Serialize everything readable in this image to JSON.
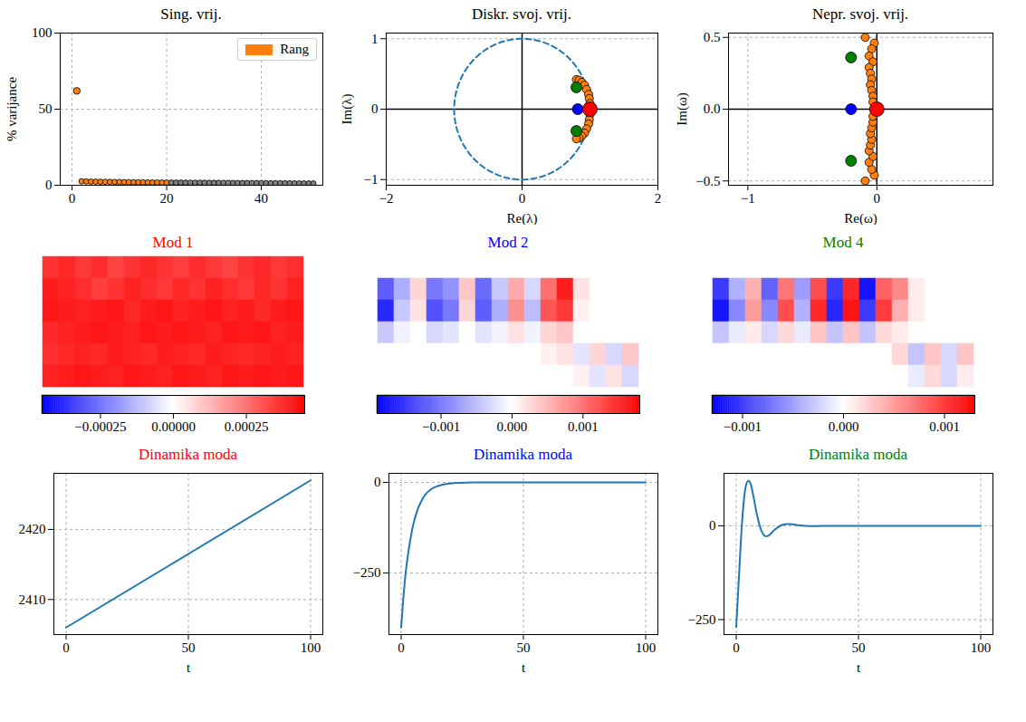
{
  "chart_data": [
    {
      "type": "scatter",
      "title": "Sing. vrij.",
      "y_label": "% varijance",
      "xlim": [
        -2.5,
        53
      ],
      "ylim": [
        0,
        100
      ],
      "xticks": [
        0,
        20,
        40
      ],
      "yticks": [
        0,
        50,
        100
      ],
      "grid": true,
      "legend": "upper right",
      "marker": "circle",
      "series": [
        {
          "name": "Rang",
          "color": "#ff7f0e",
          "x": [
            1,
            2,
            3,
            4,
            5,
            6,
            7,
            8,
            9,
            10,
            11,
            12,
            13,
            14,
            15,
            16,
            17,
            18,
            19,
            20
          ],
          "values": [
            62,
            2.6,
            2.5,
            2.4,
            2.35,
            2.3,
            2.25,
            2.2,
            2.15,
            2.1,
            2.05,
            2.0,
            1.98,
            1.95,
            1.92,
            1.9,
            1.87,
            1.85,
            1.82,
            1.8
          ]
        },
        {
          "color": "#808080",
          "x": [
            21,
            22,
            23,
            24,
            25,
            26,
            27,
            28,
            29,
            30,
            31,
            32,
            33,
            34,
            35,
            36,
            37,
            38,
            39,
            40,
            41,
            42,
            43,
            44,
            45,
            46,
            47,
            48,
            49,
            50,
            51
          ],
          "values": [
            1.78,
            1.76,
            1.74,
            1.72,
            1.7,
            1.68,
            1.66,
            1.64,
            1.62,
            1.6,
            1.58,
            1.56,
            1.54,
            1.52,
            1.5,
            1.48,
            1.46,
            1.44,
            1.42,
            1.4,
            1.38,
            1.36,
            1.34,
            1.32,
            1.3,
            1.28,
            1.26,
            1.24,
            1.22,
            1.2,
            1.18
          ]
        }
      ]
    },
    {
      "type": "scatter",
      "title": "Diskr. svoj. vrij.",
      "x_label": "Re(λ)",
      "y_label": "Im(λ)",
      "xlim": [
        -2,
        2
      ],
      "ylim": [
        -1.08,
        1.08
      ],
      "xticks": [
        {
          "value": -2,
          "label": "−2"
        },
        0,
        2
      ],
      "yticks": [
        {
          "value": -1,
          "label": "−1"
        },
        0,
        1
      ],
      "grid": true,
      "marker": "circle",
      "axhline": 0,
      "axvline": 0,
      "circle": {
        "radius": 1,
        "color": "#1f77b4",
        "line_style": "dashed"
      },
      "series": [
        {
          "color": "#ff7f0e",
          "x": [
            0.8,
            0.84,
            0.88,
            0.92,
            0.95,
            0.98,
            0.99,
            1.0,
            1.0,
            0.99,
            0.98,
            0.95,
            0.92,
            0.88,
            0.84,
            0.8
          ],
          "values": [
            0.42,
            0.41,
            0.38,
            0.34,
            0.28,
            0.21,
            0.15,
            0.08,
            -0.08,
            -0.15,
            -0.21,
            -0.28,
            -0.34,
            -0.38,
            -0.41,
            -0.42
          ]
        },
        {
          "color": "#008000",
          "x": [
            0.8,
            0.8
          ],
          "values": [
            0.31,
            -0.31
          ]
        },
        {
          "color": "#0000ff",
          "x": [
            0.82
          ],
          "values": [
            0
          ]
        },
        {
          "color": "#ff0000",
          "x": [
            1.0
          ],
          "values": [
            0
          ]
        }
      ]
    },
    {
      "type": "scatter",
      "title": "Nepr. svoj. vrij.",
      "x_label": "Re(ω)",
      "y_label": "Im(ω)",
      "xlim": [
        -1.15,
        0.9
      ],
      "ylim": [
        -0.53,
        0.53
      ],
      "xticks": [
        {
          "value": -1,
          "label": "−1"
        },
        0
      ],
      "yticks": [
        {
          "value": -0.5,
          "label": "−0.5"
        },
        {
          "value": 0,
          "label": "0.0"
        },
        0.5
      ],
      "grid": true,
      "marker": "circle",
      "axhline": 0,
      "axvline": 0,
      "series": [
        {
          "color": "#ff7f0e",
          "x": [
            -0.09,
            -0.02,
            -0.04,
            -0.06,
            -0.03,
            -0.06,
            -0.05,
            -0.04,
            -0.05,
            -0.04,
            -0.03,
            -0.03,
            -0.09,
            -0.02,
            -0.04,
            -0.06,
            -0.03,
            -0.06,
            -0.05,
            -0.04,
            -0.05,
            -0.04,
            -0.03,
            -0.03
          ],
          "values": [
            0.5,
            0.46,
            0.42,
            0.37,
            0.33,
            0.29,
            0.25,
            0.21,
            0.17,
            0.13,
            0.09,
            0.05,
            -0.5,
            -0.46,
            -0.42,
            -0.37,
            -0.33,
            -0.29,
            -0.25,
            -0.21,
            -0.17,
            -0.13,
            -0.09,
            -0.05
          ]
        },
        {
          "color": "#008000",
          "x": [
            -0.2,
            -0.2
          ],
          "values": [
            0.36,
            -0.36
          ]
        },
        {
          "color": "#0000ff",
          "x": [
            -0.2
          ],
          "values": [
            0
          ]
        },
        {
          "color": "#ff0000",
          "x": [
            0
          ],
          "values": [
            0
          ]
        }
      ]
    },
    {
      "type": "heatmap",
      "title": "Mod 1",
      "color": "#ff0000",
      "colors": [
        "#0000ff",
        "#ffffff",
        "#ff0000"
      ],
      "colorbar_range": [
        -0.00045,
        0.00045
      ],
      "colorbar_ticks": [
        {
          "value": -0.00025,
          "label": "−0.00025"
        },
        {
          "value": 0,
          "label": "0.00000"
        },
        {
          "value": 0.00025,
          "label": "0.00025"
        }
      ],
      "cells": [
        [
          0.00036,
          0.00038,
          0.00035,
          0.00037,
          0.00033,
          0.00036,
          0.00038,
          0.00036,
          0.00034,
          0.00037,
          0.00035,
          0.00033,
          0.00036,
          0.00038,
          0.00035,
          0.00037
        ],
        [
          0.0004,
          0.00039,
          0.00037,
          0.00034,
          0.00036,
          0.00039,
          0.00037,
          0.00035,
          0.00038,
          0.00036,
          0.00039,
          0.00037,
          0.00035,
          0.00038,
          0.00036,
          0.00039
        ],
        [
          0.00041,
          0.0004,
          0.00039,
          0.0004,
          0.00041,
          0.00038,
          0.0004,
          0.00041,
          0.00039,
          0.0004,
          0.00041,
          0.00039,
          0.0004,
          0.00038,
          0.0004,
          0.00041
        ],
        [
          0.00038,
          0.00039,
          0.0004,
          0.00041,
          0.0004,
          0.00039,
          0.00041,
          0.0004,
          0.00041,
          0.0004,
          0.00039,
          0.00041,
          0.0004,
          0.00041,
          0.00039,
          0.0004
        ],
        [
          0.00037,
          0.00038,
          0.00039,
          0.00038,
          0.0004,
          0.00039,
          0.00038,
          0.0004,
          0.00039,
          0.00038,
          0.0004,
          0.00039,
          0.00038,
          0.00039,
          0.0004,
          0.00039
        ],
        [
          0.00039,
          0.0004,
          0.00041,
          0.0004,
          0.00039,
          0.00041,
          0.0004,
          0.00039,
          0.00041,
          0.0004,
          0.00039,
          0.00041,
          0.0004,
          0.00041,
          0.0004,
          0.00041
        ]
      ]
    },
    {
      "type": "heatmap",
      "title": "Mod 2",
      "color": "#0000ff",
      "colors": [
        "#0000ff",
        "#ffffff",
        "#ff0000"
      ],
      "colorbar_range": [
        -0.0019,
        0.0018
      ],
      "colorbar_ticks": [
        {
          "value": -0.001,
          "label": "−0.001"
        },
        {
          "value": 0,
          "label": "0.000"
        },
        0.001
      ],
      "cells": [
        [
          0,
          0,
          0,
          0,
          0,
          0,
          0,
          0,
          0,
          0,
          0,
          0,
          0,
          0,
          0,
          0
        ],
        [
          -0.0012,
          -0.0006,
          0.0003,
          -0.001,
          -0.0008,
          0.0004,
          -0.0011,
          -0.0004,
          0.0006,
          -0.0003,
          0.001,
          0.0016,
          0.0002,
          0,
          0,
          0
        ],
        [
          -0.0016,
          -0.0004,
          0.0002,
          -0.0013,
          -0.001,
          0.0003,
          -0.0012,
          -0.0006,
          0.0008,
          -0.0005,
          0.0012,
          0.0014,
          0.0001,
          0,
          0,
          0
        ],
        [
          -0.0004,
          -0.0001,
          0,
          -0.0003,
          -0.0002,
          0,
          -0.0002,
          -0.0001,
          0.0002,
          -0.0001,
          0.0003,
          0.0004,
          0,
          0,
          0,
          0
        ],
        [
          0,
          0,
          0,
          0,
          0,
          0,
          0,
          0,
          0,
          0,
          0.0001,
          0.0002,
          -0.0002,
          0.0003,
          -0.0003,
          0.0004
        ],
        [
          0,
          0,
          0,
          0,
          0,
          0,
          0,
          0,
          0,
          0,
          0,
          0,
          0.0001,
          -0.0002,
          0.0002,
          -0.0003
        ]
      ]
    },
    {
      "type": "heatmap",
      "title": "Mod 4",
      "color": "#008000",
      "colors": [
        "#0000ff",
        "#ffffff",
        "#ff0000"
      ],
      "colorbar_range": [
        -0.0013,
        0.0013
      ],
      "colorbar_ticks": [
        {
          "value": -0.001,
          "label": "−0.001"
        },
        {
          "value": 0,
          "label": "0.000"
        },
        0.001
      ],
      "cells": [
        [
          0,
          0,
          0,
          0,
          0,
          0,
          0,
          0,
          0,
          0,
          0,
          0,
          0,
          0,
          0,
          0
        ],
        [
          -0.001,
          -0.0004,
          0.0004,
          -0.0008,
          0.0007,
          -0.0005,
          0.0009,
          -0.001,
          0.0011,
          -0.0012,
          0.0008,
          0.0006,
          0.0001,
          0,
          0,
          0
        ],
        [
          -0.0012,
          -0.0006,
          0.0005,
          -0.0006,
          0.0009,
          -0.0004,
          0.0011,
          -0.0011,
          0.0012,
          -0.001,
          0.001,
          0.0004,
          0.0001,
          0,
          0,
          0
        ],
        [
          -0.0003,
          -0.0001,
          0.0001,
          -0.0002,
          0.0002,
          -0.0001,
          0.0003,
          -0.0003,
          0.0003,
          -0.0003,
          0.0002,
          0.0001,
          0,
          0,
          0,
          0
        ],
        [
          0,
          0,
          0,
          0,
          0,
          0,
          0,
          0,
          0,
          0,
          0,
          0.0002,
          -0.0003,
          0.0003,
          -0.0002,
          0.0003
        ],
        [
          0,
          0,
          0,
          0,
          0,
          0,
          0,
          0,
          0,
          0,
          0,
          0,
          -0.0001,
          0.0002,
          -0.0002,
          0.0001
        ]
      ]
    },
    {
      "type": "line",
      "title": "Dinamika moda",
      "color": "#ff0000",
      "x_label": "t",
      "xlim": [
        -5,
        105
      ],
      "ylim": [
        2405,
        2428
      ],
      "xticks": [
        0,
        50,
        100
      ],
      "yticks": [
        2410,
        2420
      ],
      "grid": true,
      "x": [
        0,
        100
      ],
      "values": [
        2406,
        2427
      ]
    },
    {
      "type": "line",
      "title": "Dinamika moda",
      "color": "#0000ff",
      "x_label": "t",
      "xlim": [
        -5,
        105
      ],
      "ylim": [
        -420,
        25
      ],
      "xticks": [
        0,
        50,
        100
      ],
      "yticks": [
        {
          "value": -250,
          "label": "−250"
        },
        0
      ],
      "grid": true,
      "x": [
        0,
        1,
        2,
        3,
        4,
        5,
        6,
        7,
        8,
        10,
        12,
        15,
        20,
        25,
        30,
        100
      ],
      "values": [
        -400,
        -310,
        -240,
        -190,
        -148,
        -115,
        -90,
        -70,
        -55,
        -33,
        -20,
        -10,
        -3,
        -1,
        0,
        0
      ]
    },
    {
      "type": "line",
      "title": "Dinamika moda",
      "color": "#008000",
      "x_label": "t",
      "xlim": [
        -5,
        105
      ],
      "ylim": [
        -290,
        140
      ],
      "xticks": [
        0,
        50,
        100
      ],
      "yticks": [
        {
          "value": -250,
          "label": "−250"
        },
        0
      ],
      "grid": true,
      "x": [
        0,
        1,
        2,
        3,
        4,
        5,
        6,
        7,
        8,
        9,
        10,
        11,
        12,
        13,
        14,
        15,
        17,
        19,
        21,
        23,
        26,
        30,
        35,
        100
      ],
      "values": [
        -270,
        -150,
        -30,
        60,
        108,
        120,
        110,
        80,
        45,
        15,
        -8,
        -22,
        -28,
        -27,
        -22,
        -15,
        -4,
        3,
        5,
        4,
        1,
        -1,
        0,
        0
      ]
    }
  ]
}
